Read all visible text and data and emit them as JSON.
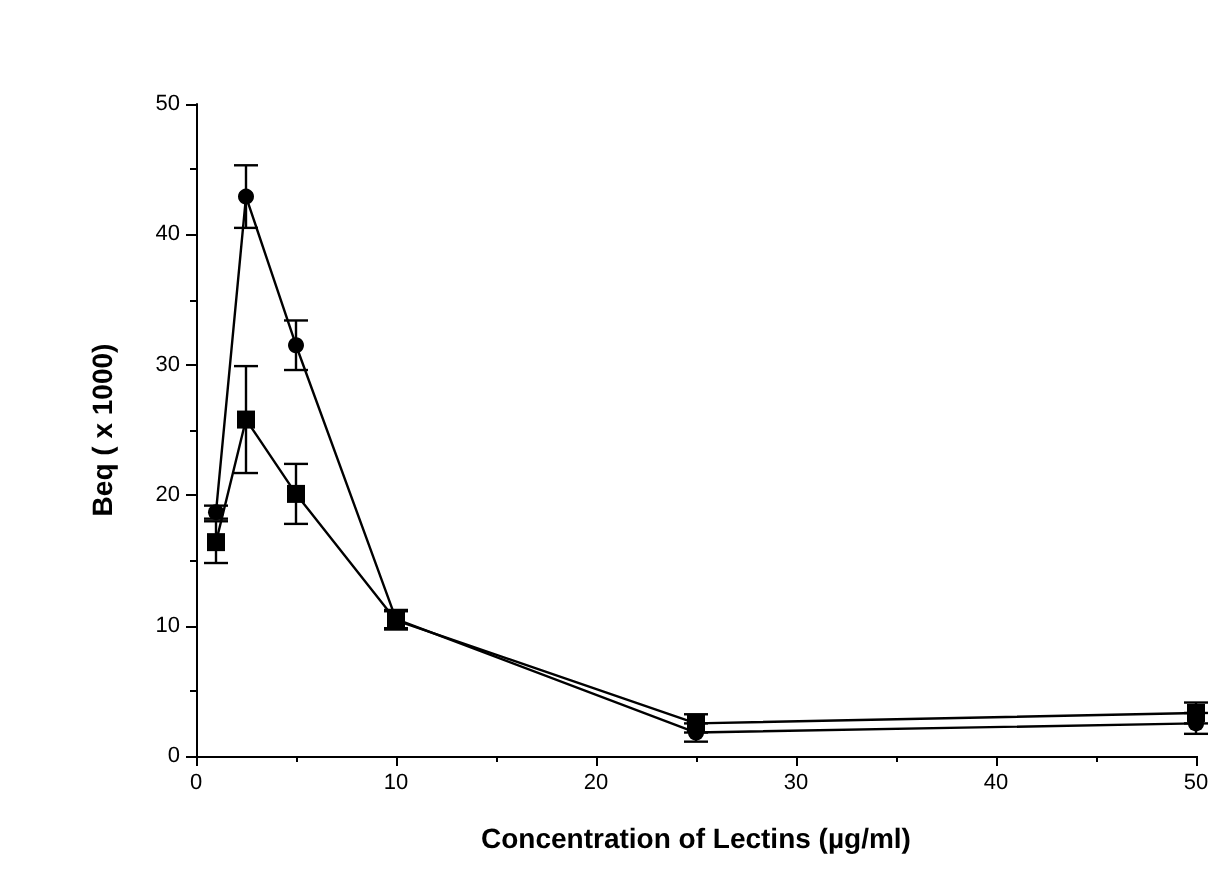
{
  "chart_data": {
    "type": "line",
    "xlabel": "Concentration of Lectins (µg/ml)",
    "ylabel": "Beq ( x 1000)",
    "x": [
      1,
      2.5,
      5,
      10,
      25,
      50
    ],
    "series": [
      {
        "color": "#000000",
        "marker": "circle",
        "values": [
          18.7,
          42.9,
          31.5,
          10.5,
          1.8,
          2.5
        ],
        "errors": [
          0.5,
          2.4,
          1.9,
          0.7,
          0.7,
          0.8
        ]
      },
      {
        "color": "#000000",
        "marker": "square",
        "values": [
          16.4,
          25.8,
          20.1,
          10.4,
          2.5,
          3.3
        ],
        "errors": [
          1.6,
          4.1,
          2.3,
          0.7,
          0.7,
          0.8
        ]
      }
    ],
    "xlim": [
      0,
      50
    ],
    "xticks": [
      0,
      10,
      20,
      30,
      40,
      50
    ],
    "ylim": [
      0,
      50
    ],
    "yticks": [
      0,
      10,
      20,
      30,
      40,
      50
    ],
    "line_style": "solid"
  }
}
